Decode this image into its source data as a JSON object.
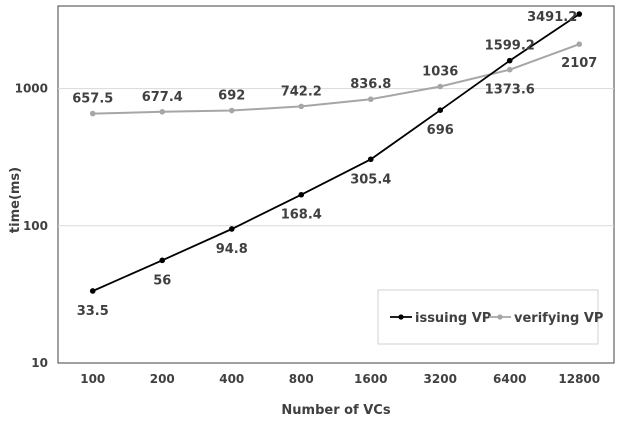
{
  "chart_data": {
    "type": "line",
    "x_scale": "category",
    "y_scale": "log10",
    "categories": [
      "100",
      "200",
      "400",
      "800",
      "1600",
      "3200",
      "6400",
      "12800"
    ],
    "ylim": [
      10,
      4000
    ],
    "y_ticks": [
      "10",
      "100",
      "1000"
    ],
    "xlabel": "Number of VCs",
    "ylabel": "time(ms)",
    "grid": "horizontal major lines",
    "legend_position": "bottom-right",
    "series": [
      {
        "name": "issuing VP",
        "color": "#000000",
        "values": [
          33.5,
          56,
          94.8,
          168.4,
          305.4,
          696,
          1599.2,
          3491.2
        ],
        "labels": [
          "33.5",
          "56",
          "94.8",
          "168.4",
          "305.4",
          "696",
          "1599.2",
          "3491.2"
        ]
      },
      {
        "name": "verifying VP",
        "color": "#a6a6a6",
        "values": [
          657.5,
          677.4,
          692,
          742.2,
          836.8,
          1036,
          1373.6,
          2107
        ],
        "labels": [
          "657.5",
          "677.4",
          "692",
          "742.2",
          "836.8",
          "1036",
          "1373.6",
          "2107"
        ]
      }
    ]
  }
}
